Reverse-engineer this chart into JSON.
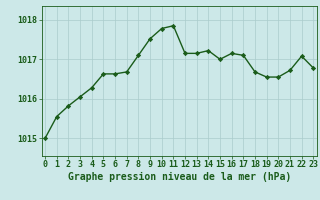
{
  "x": [
    0,
    1,
    2,
    3,
    4,
    5,
    6,
    7,
    8,
    9,
    10,
    11,
    12,
    13,
    14,
    15,
    16,
    17,
    18,
    19,
    20,
    21,
    22,
    23
  ],
  "y": [
    1015.0,
    1015.55,
    1015.82,
    1016.05,
    1016.28,
    1016.63,
    1016.63,
    1016.68,
    1017.1,
    1017.52,
    1017.78,
    1017.85,
    1017.15,
    1017.15,
    1017.22,
    1017.0,
    1017.15,
    1017.1,
    1016.68,
    1016.55,
    1016.55,
    1016.72,
    1017.08,
    1016.78
  ],
  "line_color": "#1a5c1a",
  "marker": "D",
  "marker_size": 2.2,
  "background_color": "#cce8e8",
  "grid_color": "#aacccc",
  "xlabel": "Graphe pression niveau de la mer (hPa)",
  "xlabel_fontsize": 7.0,
  "ytick_labels": [
    "1015",
    "1016",
    "1017",
    "1018"
  ],
  "ytick_values": [
    1015,
    1016,
    1017,
    1018
  ],
  "ylim": [
    1014.55,
    1018.35
  ],
  "xlim": [
    -0.3,
    23.3
  ],
  "tick_color": "#1a5c1a",
  "label_color": "#1a5c1a",
  "tick_fontsize": 6.0,
  "linewidth": 1.0
}
